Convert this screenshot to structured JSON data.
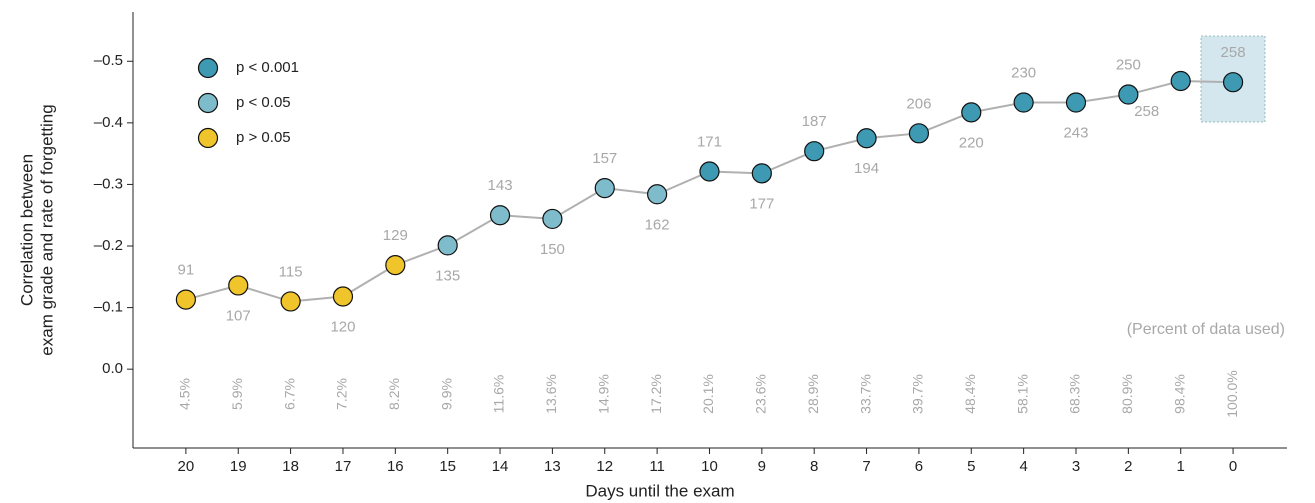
{
  "chart_data": {
    "type": "line",
    "x_label": "Days until the exam",
    "y_label": [
      "Correlation between",
      "exam grade and rate of forgetting"
    ],
    "x": [
      20,
      19,
      18,
      17,
      16,
      15,
      14,
      13,
      12,
      11,
      10,
      9,
      8,
      7,
      6,
      5,
      4,
      3,
      2,
      1,
      0
    ],
    "values": [
      -0.113,
      -0.136,
      -0.11,
      -0.118,
      -0.169,
      -0.201,
      -0.25,
      -0.244,
      -0.294,
      -0.284,
      -0.321,
      -0.318,
      -0.354,
      -0.375,
      -0.383,
      -0.417,
      -0.433,
      -0.433,
      -0.446,
      -0.468,
      -0.466
    ],
    "point_groups": [
      2,
      2,
      2,
      2,
      2,
      1,
      1,
      1,
      1,
      1,
      0,
      0,
      0,
      0,
      0,
      0,
      0,
      0,
      0,
      0,
      0
    ],
    "legend": [
      {
        "name": "p < 0.001",
        "color": "#3d9ab2"
      },
      {
        "name": "p < 0.05",
        "color": "#7fbccb"
      },
      {
        "name": "p > 0.05",
        "color": "#f0c52b"
      }
    ],
    "line_color": "#b0b0b0",
    "n_labels": [
      91,
      107,
      115,
      120,
      129,
      135,
      143,
      150,
      157,
      162,
      171,
      177,
      187,
      194,
      206,
      220,
      230,
      243,
      250,
      258,
      258
    ],
    "percent_title": "(Percent of data used)",
    "percent_used": [
      4.5,
      5.9,
      6.7,
      7.2,
      8.2,
      9.9,
      11.6,
      13.6,
      14.9,
      17.2,
      20.1,
      23.6,
      28.9,
      33.7,
      39.7,
      48.4,
      58.1,
      68.3,
      80.9,
      98.4,
      100.0
    ],
    "percent_labels": [
      "4.5%",
      "5.9%",
      "6.7%",
      "7.2%",
      "8.2%",
      "9.9%",
      "11.6%",
      "13.6%",
      "14.9%",
      "17.2%",
      "20.1%",
      "23.6%",
      "28.9%",
      "33.7%",
      "39.7%",
      "48.4%",
      "58.1%",
      "68.3%",
      "80.9%",
      "98.4%",
      "100.0%"
    ],
    "xlim": [
      21.01,
      -1.03
    ],
    "xticks": [
      20,
      19,
      18,
      17,
      16,
      15,
      14,
      13,
      12,
      11,
      10,
      9,
      8,
      7,
      6,
      5,
      4,
      3,
      2,
      1,
      0
    ],
    "ylim": [
      0.128,
      -0.58
    ],
    "yticks": [
      {
        "value": 0,
        "label": "0.0"
      },
      {
        "value": -0.1,
        "label": "–0.1"
      },
      {
        "value": -0.2,
        "label": "–0.2"
      },
      {
        "value": -0.3,
        "label": "–0.3"
      },
      {
        "value": -0.4,
        "label": "–0.4"
      },
      {
        "value": -0.5,
        "label": "–0.5"
      }
    ]
  }
}
